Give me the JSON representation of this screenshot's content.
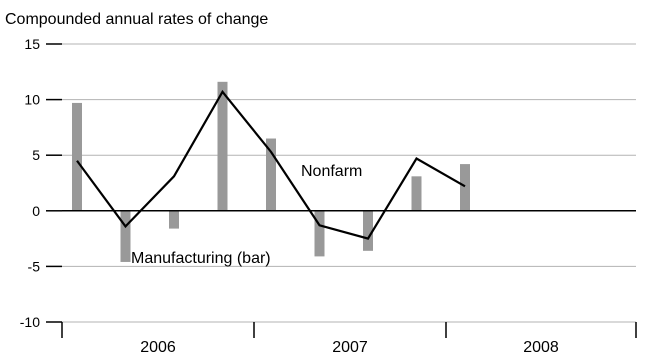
{
  "chart_data": {
    "type": "bar",
    "ylabel": "Compounded annual rates of change",
    "ylim": [
      -10,
      15
    ],
    "yticks": [
      15,
      10,
      5,
      0,
      -5,
      -10
    ],
    "year_labels": [
      "2006",
      "2007",
      "2008"
    ],
    "grid": true,
    "series": [
      {
        "name": "Manufacturing (bar)",
        "kind": "bar",
        "color": "#999999",
        "values": [
          9.7,
          -4.6,
          -1.6,
          11.6,
          6.5,
          -4.1,
          -3.6,
          3.1,
          4.2
        ]
      },
      {
        "name": "Nonfarm",
        "kind": "line",
        "color": "#000000",
        "values": [
          4.5,
          -1.4,
          3.1,
          10.7,
          5.3,
          -1.3,
          -2.5,
          4.7,
          2.2
        ]
      }
    ],
    "annotations": [
      {
        "text": "Nonfarm",
        "series": "Nonfarm"
      },
      {
        "text": "Manufacturing (bar)",
        "series": "Manufacturing (bar)"
      }
    ]
  }
}
